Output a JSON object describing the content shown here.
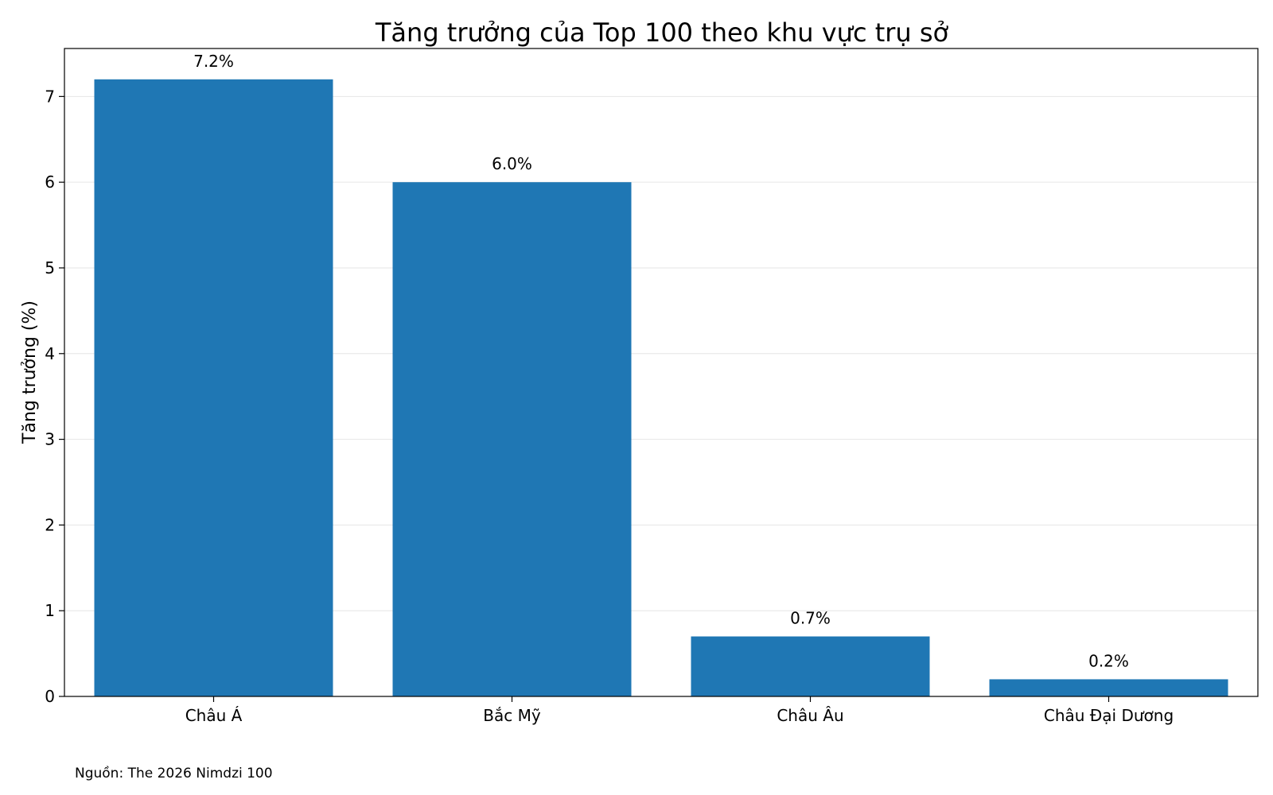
{
  "chart_data": {
    "type": "bar",
    "title": "Tăng trưởng của Top 100 theo khu vực trụ sở",
    "xlabel": "",
    "ylabel": "Tăng trưởng (%)",
    "categories": [
      "Châu Á",
      "Bắc Mỹ",
      "Châu Âu",
      "Châu Đại Dương"
    ],
    "values": [
      7.2,
      6.0,
      0.7,
      0.2
    ],
    "data_labels": [
      "7.2%",
      "6.0%",
      "0.7%",
      "0.2%"
    ],
    "ylim": [
      0,
      7.56
    ],
    "yticks": [
      0,
      1,
      2,
      3,
      4,
      5,
      6,
      7
    ],
    "grid": true,
    "bar_color": "#1f77b4"
  },
  "footer": {
    "source": "Nguồn: The 2026 Nimdzi 100"
  }
}
